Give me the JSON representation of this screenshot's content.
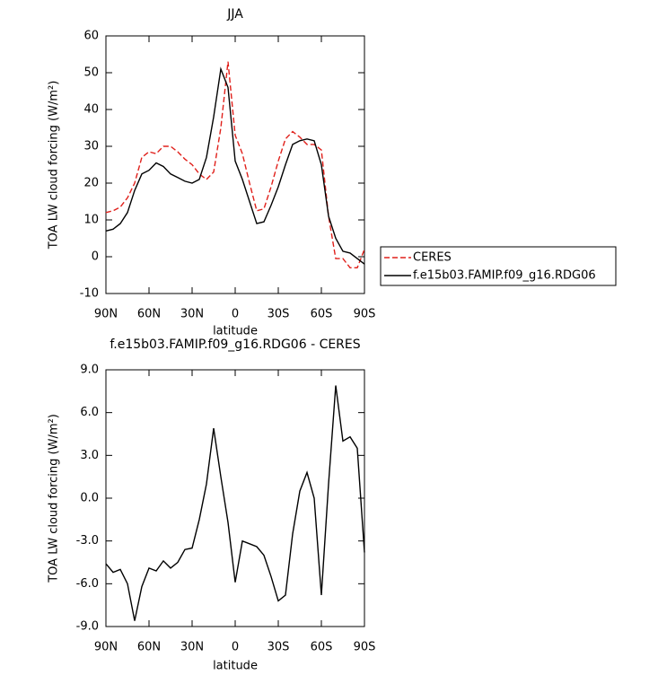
{
  "chart_data": [
    {
      "type": "line",
      "title": "JJA",
      "xlabel": "latitude",
      "ylabel": "TOA LW cloud forcing (W/m²)",
      "x": [
        90,
        85,
        80,
        75,
        70,
        65,
        60,
        55,
        50,
        45,
        40,
        35,
        30,
        25,
        20,
        15,
        10,
        5,
        0,
        -5,
        -10,
        -15,
        -20,
        -25,
        -30,
        -35,
        -40,
        -45,
        -50,
        -55,
        -60,
        -65,
        -70,
        -75,
        -80,
        -85,
        -90
      ],
      "xlim": [
        90,
        -90
      ],
      "xticks": [
        {
          "value": 90,
          "label": "90N"
        },
        {
          "value": 60,
          "label": "60N"
        },
        {
          "value": 30,
          "label": "30N"
        },
        0,
        {
          "value": -30,
          "label": "30S"
        },
        {
          "value": -60,
          "label": "60S"
        },
        {
          "value": -90,
          "label": "90S"
        }
      ],
      "ylim": [
        -10,
        60
      ],
      "yticks": [
        -10,
        0,
        10,
        20,
        30,
        40,
        50,
        60
      ],
      "legend": "right",
      "series": [
        {
          "name": "CERES",
          "color": "#e0201b",
          "linestyle": "dashed",
          "values": [
            12,
            12.5,
            13.5,
            16,
            20,
            27,
            28.5,
            28,
            30,
            30,
            28.5,
            26.5,
            25,
            22.5,
            21,
            23,
            35,
            53,
            33,
            28,
            20,
            12.5,
            13,
            19,
            26,
            32,
            34,
            32.5,
            30.5,
            30.5,
            29,
            11,
            -0.5,
            -0.5,
            -3,
            -3,
            2
          ]
        },
        {
          "name": "f.e15b03.FAMIP.f09_g16.RDG06",
          "color": "#000000",
          "linestyle": "solid",
          "values": [
            7,
            7.5,
            9,
            12,
            18,
            22.5,
            23.5,
            25.5,
            24.5,
            22.5,
            21.5,
            20.5,
            20,
            21,
            27,
            38,
            51,
            46,
            26,
            21,
            15,
            9,
            9.5,
            14,
            19,
            25,
            30.5,
            31.5,
            32,
            31.5,
            25,
            11,
            5,
            1.5,
            1,
            -0.5,
            -2
          ]
        }
      ]
    },
    {
      "type": "line",
      "title": "f.e15b03.FAMIP.f09_g16.RDG06 - CERES",
      "xlabel": "latitude",
      "ylabel": "TOA LW cloud forcing (W/m²)",
      "x": [
        90,
        85,
        80,
        75,
        70,
        65,
        60,
        55,
        50,
        45,
        40,
        35,
        30,
        25,
        20,
        15,
        10,
        5,
        0,
        -5,
        -10,
        -15,
        -20,
        -25,
        -30,
        -35,
        -40,
        -45,
        -50,
        -55,
        -60,
        -65,
        -70,
        -75,
        -80,
        -85,
        -90
      ],
      "xlim": [
        90,
        -90
      ],
      "xticks": [
        {
          "value": 90,
          "label": "90N"
        },
        {
          "value": 60,
          "label": "60N"
        },
        {
          "value": 30,
          "label": "30N"
        },
        0,
        {
          "value": -30,
          "label": "30S"
        },
        {
          "value": -60,
          "label": "60S"
        },
        {
          "value": -90,
          "label": "90S"
        }
      ],
      "ylim": [
        -9,
        9
      ],
      "yticks": [
        {
          "value": -9,
          "label": "-9.0"
        },
        {
          "value": -6,
          "label": "-6.0"
        },
        {
          "value": -3,
          "label": "-3.0"
        },
        {
          "value": 0,
          "label": "0.0"
        },
        {
          "value": 3,
          "label": "3.0"
        },
        {
          "value": 6,
          "label": "6.0"
        },
        {
          "value": 9,
          "label": "9.0"
        }
      ],
      "series": [
        {
          "color": "#000000",
          "linestyle": "solid",
          "values": [
            -4.6,
            -5.2,
            -5.0,
            -6.0,
            -8.6,
            -6.2,
            -4.9,
            -5.1,
            -4.4,
            -4.9,
            -4.5,
            -3.6,
            -3.5,
            -1.5,
            1.0,
            4.9,
            1.5,
            -1.7,
            -5.9,
            -3.0,
            -3.2,
            -3.4,
            -4.0,
            -5.5,
            -7.2,
            -6.8,
            -2.5,
            0.5,
            1.8,
            0,
            -6.8,
            1,
            7.9,
            4.0,
            4.3,
            3.5,
            -3.8
          ]
        }
      ]
    }
  ]
}
